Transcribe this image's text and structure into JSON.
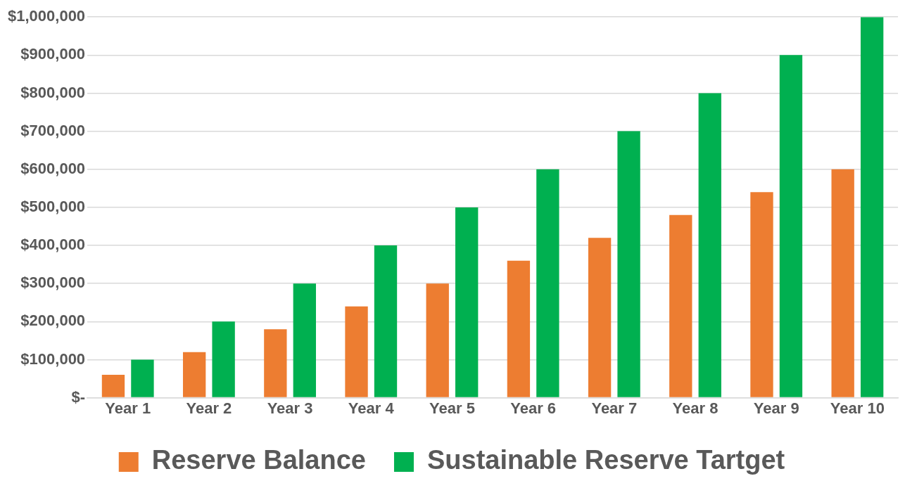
{
  "chart_data": {
    "type": "bar",
    "categories": [
      "Year 1",
      "Year 2",
      "Year 3",
      "Year 4",
      "Year 5",
      "Year 6",
      "Year 7",
      "Year 8",
      "Year 9",
      "Year 10"
    ],
    "series": [
      {
        "name": "Reserve Balance",
        "color": "#ed7d31",
        "values": [
          60000,
          120000,
          180000,
          240000,
          300000,
          360000,
          420000,
          480000,
          540000,
          600000
        ]
      },
      {
        "name": "Sustainable Reserve Tartget",
        "color": "#00b050",
        "values": [
          100000,
          200000,
          300000,
          400000,
          500000,
          600000,
          700000,
          800000,
          900000,
          1000000
        ]
      }
    ],
    "ylim": [
      0,
      1000000
    ],
    "yticks": [
      {
        "value": 0,
        "label": "$-"
      },
      {
        "value": 100000,
        "label": "$100,000"
      },
      {
        "value": 200000,
        "label": "$200,000"
      },
      {
        "value": 300000,
        "label": "$300,000"
      },
      {
        "value": 400000,
        "label": "$400,000"
      },
      {
        "value": 500000,
        "label": "$500,000"
      },
      {
        "value": 600000,
        "label": "$600,000"
      },
      {
        "value": 700000,
        "label": "$700,000"
      },
      {
        "value": 800000,
        "label": "$800,000"
      },
      {
        "value": 900000,
        "label": "$900,000"
      },
      {
        "value": 1000000,
        "label": "$1,000,000"
      }
    ],
    "grid": "y",
    "legend": "bottom"
  }
}
